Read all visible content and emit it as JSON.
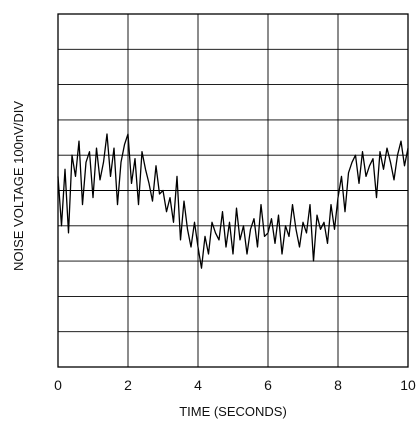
{
  "chart_data": {
    "type": "line",
    "title": "",
    "xlabel": "TIME (SECONDS)",
    "ylabel": "NOISE VOLTAGE 100nV/DIV",
    "xlim": [
      0,
      10
    ],
    "ylim": [
      -500,
      500
    ],
    "x_ticks": [
      0,
      2,
      4,
      6,
      8,
      10
    ],
    "x_tick_labels": [
      "0",
      "2",
      "4",
      "6",
      "8",
      "10"
    ],
    "y_divisions": 10,
    "y_tick_labels_shown": false,
    "grid": true,
    "legend": "none",
    "series": [
      {
        "x": [
          0.0,
          0.1,
          0.2,
          0.3,
          0.4,
          0.5,
          0.6,
          0.7,
          0.8,
          0.9,
          1.0,
          1.1,
          1.2,
          1.3,
          1.4,
          1.5,
          1.6,
          1.7,
          1.8,
          1.9,
          2.0,
          2.1,
          2.2,
          2.3,
          2.4,
          2.5,
          2.6,
          2.7,
          2.8,
          2.9,
          3.0,
          3.1,
          3.2,
          3.3,
          3.4,
          3.5,
          3.6,
          3.7,
          3.8,
          3.9,
          4.0,
          4.1,
          4.2,
          4.3,
          4.4,
          4.5,
          4.6,
          4.7,
          4.8,
          4.9,
          5.0,
          5.1,
          5.2,
          5.3,
          5.4,
          5.5,
          5.6,
          5.7,
          5.8,
          5.9,
          6.0,
          6.1,
          6.2,
          6.3,
          6.4,
          6.5,
          6.6,
          6.7,
          6.8,
          6.9,
          7.0,
          7.1,
          7.2,
          7.3,
          7.4,
          7.5,
          7.6,
          7.7,
          7.8,
          7.9,
          8.0,
          8.1,
          8.2,
          8.3,
          8.4,
          8.5,
          8.6,
          8.7,
          8.8,
          8.9,
          9.0,
          9.1,
          9.2,
          9.3,
          9.4,
          9.5,
          9.6,
          9.7,
          9.8,
          9.9,
          10.0
        ],
        "y": [
          40,
          -100,
          60,
          -120,
          100,
          40,
          140,
          -40,
          80,
          110,
          -20,
          120,
          30,
          80,
          160,
          40,
          120,
          -40,
          80,
          130,
          160,
          20,
          90,
          -40,
          110,
          60,
          20,
          -30,
          70,
          -10,
          0,
          -60,
          -20,
          -90,
          40,
          -140,
          -30,
          -110,
          -160,
          -90,
          -160,
          -220,
          -130,
          -180,
          -90,
          -120,
          -140,
          -60,
          -160,
          -90,
          -180,
          -50,
          -140,
          -100,
          -180,
          -110,
          -80,
          -160,
          -40,
          -130,
          -120,
          -80,
          -150,
          -70,
          -180,
          -100,
          -130,
          -40,
          -110,
          -160,
          -90,
          -120,
          -40,
          -200,
          -70,
          -110,
          -90,
          -150,
          -40,
          -110,
          -20,
          40,
          -60,
          50,
          80,
          100,
          20,
          110,
          40,
          70,
          90,
          -20,
          110,
          60,
          120,
          80,
          30,
          100,
          140,
          70,
          120
        ]
      }
    ]
  }
}
